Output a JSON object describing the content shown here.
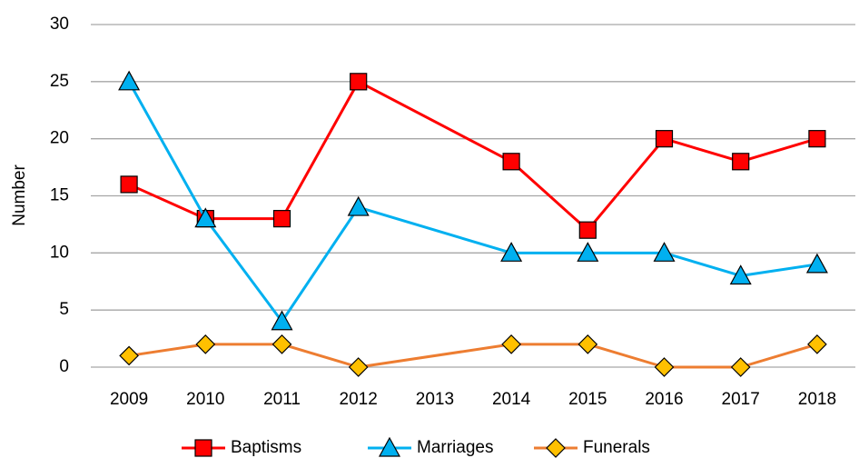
{
  "chart_data": {
    "type": "line",
    "y_label": "Number",
    "categories": [
      "2009",
      "2010",
      "2011",
      "2012",
      "2013",
      "2014",
      "2015",
      "2016",
      "2017",
      "2018"
    ],
    "series": [
      {
        "name": "Baptisms",
        "color": "#ff0000",
        "marker": "square",
        "marker_color": "#ff0000",
        "values": [
          16,
          13,
          13,
          25,
          null,
          18,
          12,
          20,
          18,
          20
        ]
      },
      {
        "name": "Marriages",
        "color": "#00b0f0",
        "marker": "triangle",
        "marker_color": "#00b0f0",
        "values": [
          25,
          13,
          4,
          14,
          null,
          10,
          10,
          10,
          8,
          9
        ]
      },
      {
        "name": "Funerals",
        "color": "#ed7d31",
        "marker": "diamond",
        "marker_color": "#ffc000",
        "values": [
          1,
          2,
          2,
          0,
          null,
          2,
          2,
          0,
          0,
          2
        ]
      }
    ],
    "ylim": [
      0,
      30
    ],
    "yticks": [
      0,
      5,
      10,
      15,
      20,
      25,
      30
    ],
    "grid": true,
    "legend": "bottom"
  }
}
